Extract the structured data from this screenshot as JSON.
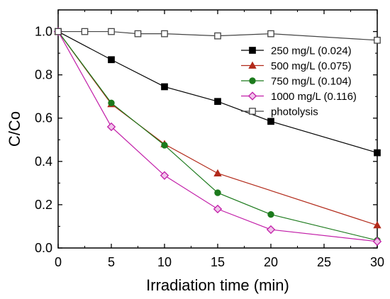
{
  "chart_data": {
    "type": "line",
    "xlabel": "Irradiation time (min)",
    "ylabel": "C/Co",
    "xlim": [
      0,
      30
    ],
    "ylim": [
      0,
      1.1
    ],
    "xticks": [
      0,
      5,
      10,
      15,
      20,
      25,
      30
    ],
    "yticks": [
      0.0,
      0.2,
      0.4,
      0.6,
      0.8,
      1.0
    ],
    "xtick_labels": [
      "0",
      "5",
      "10",
      "15",
      "20",
      "25",
      "30"
    ],
    "ytick_labels": [
      "0.0",
      "0.2",
      "0.4",
      "0.6",
      "0.8",
      "1.0"
    ],
    "grid": false,
    "legend_position": "top-right",
    "series": [
      {
        "name": "250 mg/L (0.024)",
        "marker": "square",
        "color": "#000000",
        "fill": "#000000",
        "x": [
          0,
          5,
          10,
          15,
          20,
          30
        ],
        "y": [
          1.0,
          0.87,
          0.745,
          0.677,
          0.585,
          0.44
        ]
      },
      {
        "name": "500 mg/L (0.075)",
        "marker": "triangle",
        "color": "#b22a1a",
        "fill": "#b22a1a",
        "x": [
          0,
          5,
          10,
          15,
          30
        ],
        "y": [
          1.0,
          0.665,
          0.48,
          0.345,
          0.105
        ]
      },
      {
        "name": "750 mg/L (0.104)",
        "marker": "circle",
        "color": "#1c7a1c",
        "fill": "#1c7a1c",
        "x": [
          0,
          5,
          10,
          15,
          20,
          30
        ],
        "y": [
          1.0,
          0.67,
          0.475,
          0.255,
          0.155,
          0.035
        ]
      },
      {
        "name": "1000 mg/L (0.116)",
        "marker": "diamond",
        "color": "#c21ea8",
        "fill": "#f0c4ea",
        "x": [
          0,
          5,
          10,
          15,
          20,
          30
        ],
        "y": [
          1.0,
          0.56,
          0.335,
          0.18,
          0.085,
          0.03
        ]
      },
      {
        "name": "photolysis",
        "marker": "square-open",
        "color": "#444444",
        "fill": "#ffffff",
        "x": [
          0,
          2.5,
          5,
          7.5,
          10,
          15,
          20,
          30
        ],
        "y": [
          1.0,
          1.0,
          1.0,
          0.99,
          0.99,
          0.98,
          0.99,
          0.96
        ]
      }
    ]
  }
}
